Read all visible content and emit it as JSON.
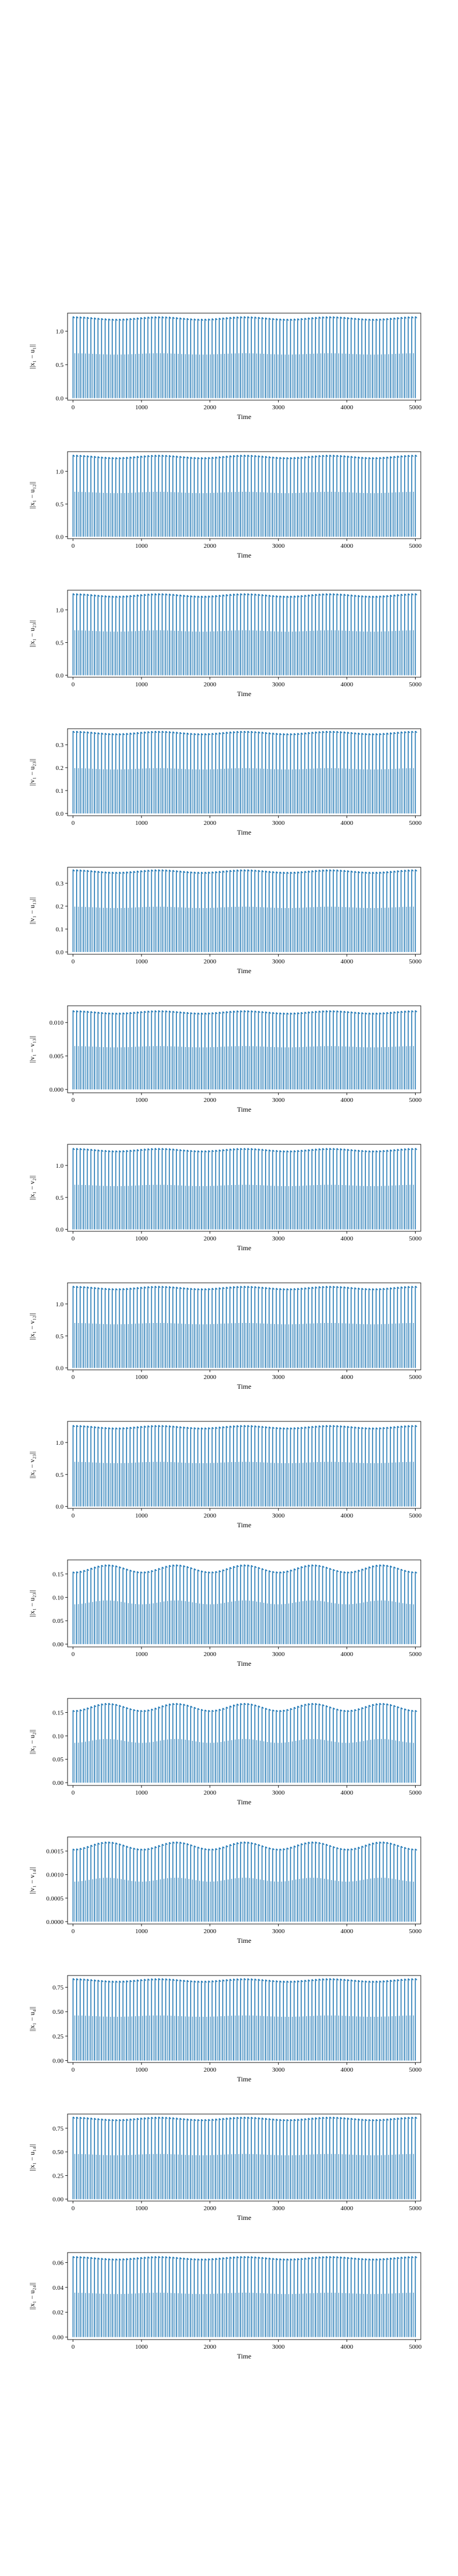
{
  "figure": {
    "background": "#ffffff"
  },
  "chart_data": [
    {
      "type": "line",
      "title": "",
      "xlabel": "Time",
      "ylabel": "||x₁ − u₁||",
      "xlim": [
        -80,
        5080
      ],
      "ylim": [
        -0.03,
        1.27
      ],
      "xticks": [
        0,
        1000,
        2000,
        3000,
        4000,
        5000
      ],
      "xtick_labels": [
        "0",
        "1000",
        "2000",
        "3000",
        "4000",
        "5000"
      ],
      "yticks": [
        0,
        0.5,
        1.0
      ],
      "ytick_labels": [
        "0.0",
        "0.5",
        "1.0"
      ],
      "grid": false,
      "legend": "none",
      "color": "#1f77b4",
      "series": [
        {
          "envelope_max": 1.22,
          "envelope_min": 0.0,
          "pattern": "dense oscillation, near-constant envelope",
          "t_range": [
            0,
            5000
          ]
        }
      ]
    },
    {
      "type": "line",
      "title": "",
      "xlabel": "Time",
      "ylabel": "||x₁ − u₁₂||",
      "xlim": [
        -80,
        5080
      ],
      "ylim": [
        -0.03,
        1.3
      ],
      "xticks": [
        0,
        1000,
        2000,
        3000,
        4000,
        5000
      ],
      "xtick_labels": [
        "0",
        "1000",
        "2000",
        "3000",
        "4000",
        "5000"
      ],
      "yticks": [
        0,
        0.5,
        1.0
      ],
      "ytick_labels": [
        "0.0",
        "0.5",
        "1.0"
      ],
      "grid": false,
      "legend": "none",
      "color": "#1f77b4",
      "series": [
        {
          "envelope_max": 1.25,
          "envelope_min": 0.0,
          "pattern": "dense oscillation, near-constant envelope",
          "t_range": [
            0,
            5000
          ]
        }
      ]
    },
    {
      "type": "line",
      "title": "",
      "xlabel": "Time",
      "ylabel": "||x₁ − u₂₃||",
      "xlim": [
        -80,
        5080
      ],
      "ylim": [
        -0.03,
        1.3
      ],
      "xticks": [
        0,
        1000,
        2000,
        3000,
        4000,
        5000
      ],
      "xtick_labels": [
        "0",
        "1000",
        "2000",
        "3000",
        "4000",
        "5000"
      ],
      "yticks": [
        0,
        0.5,
        1.0
      ],
      "ytick_labels": [
        "0.0",
        "0.5",
        "1.0"
      ],
      "grid": false,
      "legend": "none",
      "color": "#1f77b4",
      "series": [
        {
          "envelope_max": 1.25,
          "envelope_min": 0.0,
          "pattern": "dense oscillation, near-constant envelope",
          "t_range": [
            0,
            5000
          ]
        }
      ]
    },
    {
      "type": "line",
      "title": "",
      "xlabel": "Time",
      "ylabel": "||v₁ − u₂₃||",
      "xlim": [
        -80,
        5080
      ],
      "ylim": [
        -0.01,
        0.37
      ],
      "xticks": [
        0,
        1000,
        2000,
        3000,
        4000,
        5000
      ],
      "xtick_labels": [
        "0",
        "1000",
        "2000",
        "3000",
        "4000",
        "5000"
      ],
      "yticks": [
        0,
        0.1,
        0.2,
        0.3
      ],
      "ytick_labels": [
        "0.0",
        "0.1",
        "0.2",
        "0.3"
      ],
      "grid": false,
      "legend": "none",
      "color": "#1f77b4",
      "series": [
        {
          "envelope_max": 0.36,
          "envelope_min": 0.0,
          "pattern": "dense oscillation, near-constant envelope",
          "t_range": [
            0,
            5000
          ]
        }
      ]
    },
    {
      "type": "line",
      "title": "",
      "xlabel": "Time",
      "ylabel": "||v₁ − u₁₃||",
      "xlim": [
        -80,
        5080
      ],
      "ylim": [
        -0.01,
        0.37
      ],
      "xticks": [
        0,
        1000,
        2000,
        3000,
        4000,
        5000
      ],
      "xtick_labels": [
        "0",
        "1000",
        "2000",
        "3000",
        "4000",
        "5000"
      ],
      "yticks": [
        0,
        0.1,
        0.2,
        0.3
      ],
      "ytick_labels": [
        "0.0",
        "0.1",
        "0.2",
        "0.3"
      ],
      "grid": false,
      "legend": "none",
      "color": "#1f77b4",
      "series": [
        {
          "envelope_max": 0.36,
          "envelope_min": 0.0,
          "pattern": "dense oscillation, near-constant envelope",
          "t_range": [
            0,
            5000
          ]
        }
      ]
    },
    {
      "type": "line",
      "title": "",
      "xlabel": "Time",
      "ylabel": "||v₁ − v₁₃||",
      "xlim": [
        -80,
        5080
      ],
      "ylim": [
        -0.0005,
        0.0125
      ],
      "xticks": [
        0,
        1000,
        2000,
        3000,
        4000,
        5000
      ],
      "xtick_labels": [
        "0",
        "1000",
        "2000",
        "3000",
        "4000",
        "5000"
      ],
      "yticks": [
        0,
        0.005,
        0.01
      ],
      "ytick_labels": [
        "0.000",
        "0.005",
        "0.010"
      ],
      "grid": false,
      "legend": "none",
      "color": "#1f77b4",
      "series": [
        {
          "envelope_max": 0.0118,
          "envelope_min": 0.0,
          "pattern": "dense oscillation, near-constant envelope",
          "t_range": [
            0,
            5000
          ]
        }
      ]
    },
    {
      "type": "line",
      "title": "",
      "xlabel": "Time",
      "ylabel": "||x₁ − v₂||",
      "xlim": [
        -80,
        5080
      ],
      "ylim": [
        -0.03,
        1.33
      ],
      "xticks": [
        0,
        1000,
        2000,
        3000,
        4000,
        5000
      ],
      "xtick_labels": [
        "0",
        "1000",
        "2000",
        "3000",
        "4000",
        "5000"
      ],
      "yticks": [
        0,
        0.5,
        1.0
      ],
      "ytick_labels": [
        "0.0",
        "0.5",
        "1.0"
      ],
      "grid": false,
      "legend": "none",
      "color": "#1f77b4",
      "series": [
        {
          "envelope_max": 1.27,
          "envelope_min": 0.0,
          "pattern": "dense oscillation, near-constant envelope",
          "t_range": [
            0,
            5000
          ]
        }
      ]
    },
    {
      "type": "line",
      "title": "",
      "xlabel": "Time",
      "ylabel": "||x₁ − v₁₂||",
      "xlim": [
        -80,
        5080
      ],
      "ylim": [
        -0.03,
        1.33
      ],
      "xticks": [
        0,
        1000,
        2000,
        3000,
        4000,
        5000
      ],
      "xtick_labels": [
        "0",
        "1000",
        "2000",
        "3000",
        "4000",
        "5000"
      ],
      "yticks": [
        0,
        0.5,
        1.0
      ],
      "ytick_labels": [
        "0.0",
        "0.5",
        "1.0"
      ],
      "grid": false,
      "legend": "none",
      "color": "#1f77b4",
      "series": [
        {
          "envelope_max": 1.28,
          "envelope_min": 0.0,
          "pattern": "dense oscillation, near-constant envelope",
          "t_range": [
            0,
            5000
          ]
        }
      ]
    },
    {
      "type": "line",
      "title": "",
      "xlabel": "Time",
      "ylabel": "||x₁ − v₂₃||",
      "xlim": [
        -80,
        5080
      ],
      "ylim": [
        -0.03,
        1.33
      ],
      "xticks": [
        0,
        1000,
        2000,
        3000,
        4000,
        5000
      ],
      "xtick_labels": [
        "0",
        "1000",
        "2000",
        "3000",
        "4000",
        "5000"
      ],
      "yticks": [
        0,
        0.5,
        1.0
      ],
      "ytick_labels": [
        "0.0",
        "0.5",
        "1.0"
      ],
      "grid": false,
      "legend": "none",
      "color": "#1f77b4",
      "series": [
        {
          "envelope_max": 1.27,
          "envelope_min": 0.0,
          "pattern": "dense oscillation, near-constant envelope",
          "t_range": [
            0,
            5000
          ]
        }
      ]
    },
    {
      "type": "line",
      "title": "",
      "xlabel": "Time",
      "ylabel": "||x₁ − u₂₃||",
      "xlim": [
        -80,
        5080
      ],
      "ylim": [
        -0.006,
        0.18
      ],
      "xticks": [
        0,
        1000,
        2000,
        3000,
        4000,
        5000
      ],
      "xtick_labels": [
        "0",
        "1000",
        "2000",
        "3000",
        "4000",
        "5000"
      ],
      "yticks": [
        0,
        0.05,
        0.1,
        0.15
      ],
      "ytick_labels": [
        "0.00",
        "0.05",
        "0.10",
        "0.15"
      ],
      "grid": false,
      "legend": "none",
      "color": "#1f77b4",
      "series": [
        {
          "envelope_max": 0.17,
          "envelope_min": 0.0,
          "pattern": "dense oscillation, envelope waves between ~0.155 and ~0.17 with period ~1000",
          "t_range": [
            0,
            5000
          ]
        }
      ]
    },
    {
      "type": "line",
      "title": "",
      "xlabel": "Time",
      "ylabel": "||x₁ − u₂||",
      "xlim": [
        -80,
        5080
      ],
      "ylim": [
        -0.006,
        0.18
      ],
      "xticks": [
        0,
        1000,
        2000,
        3000,
        4000,
        5000
      ],
      "xtick_labels": [
        "0",
        "1000",
        "2000",
        "3000",
        "4000",
        "5000"
      ],
      "yticks": [
        0,
        0.05,
        0.1,
        0.15
      ],
      "ytick_labels": [
        "0.00",
        "0.05",
        "0.10",
        "0.15"
      ],
      "grid": false,
      "legend": "none",
      "color": "#1f77b4",
      "series": [
        {
          "envelope_max": 0.17,
          "envelope_min": 0.0,
          "pattern": "dense oscillation, envelope waves between ~0.155 and ~0.17 with period ~1000",
          "t_range": [
            0,
            5000
          ]
        }
      ]
    },
    {
      "type": "line",
      "title": "",
      "xlabel": "Time",
      "ylabel": "||v₁ − v₁₄||",
      "xlim": [
        -80,
        5080
      ],
      "ylim": [
        -5e-05,
        0.0018
      ],
      "xticks": [
        0,
        1000,
        2000,
        3000,
        4000,
        5000
      ],
      "xtick_labels": [
        "0",
        "1000",
        "2000",
        "3000",
        "4000",
        "5000"
      ],
      "yticks": [
        0,
        0.0005,
        0.001,
        0.0015
      ],
      "ytick_labels": [
        "0.0000",
        "0.0005",
        "0.0010",
        "0.0015"
      ],
      "grid": false,
      "legend": "none",
      "color": "#1f77b4",
      "series": [
        {
          "envelope_max": 0.0017,
          "envelope_min": 0.0,
          "pattern": "dense oscillation, envelope waves between ~0.0015 and ~0.0017 with period ~1000",
          "t_range": [
            0,
            5000
          ]
        }
      ]
    },
    {
      "type": "line",
      "title": "",
      "xlabel": "Time",
      "ylabel": "||x₁ − u₄||",
      "xlim": [
        -80,
        5080
      ],
      "ylim": [
        -0.02,
        0.87
      ],
      "xticks": [
        0,
        1000,
        2000,
        3000,
        4000,
        5000
      ],
      "xtick_labels": [
        "0",
        "1000",
        "2000",
        "3000",
        "4000",
        "5000"
      ],
      "yticks": [
        0,
        0.25,
        0.5,
        0.75
      ],
      "ytick_labels": [
        "0.00",
        "0.25",
        "0.50",
        "0.75"
      ],
      "grid": false,
      "legend": "none",
      "color": "#1f77b4",
      "series": [
        {
          "envelope_max": 0.84,
          "envelope_min": 0.0,
          "pattern": "dense oscillation, near-constant envelope",
          "t_range": [
            0,
            5000
          ]
        }
      ]
    },
    {
      "type": "line",
      "title": "",
      "xlabel": "Time",
      "ylabel": "||x₁ − u₁₄||",
      "xlim": [
        -80,
        5080
      ],
      "ylim": [
        -0.02,
        0.9
      ],
      "xticks": [
        0,
        1000,
        2000,
        3000,
        4000,
        5000
      ],
      "xtick_labels": [
        "0",
        "1000",
        "2000",
        "3000",
        "4000",
        "5000"
      ],
      "yticks": [
        0,
        0.25,
        0.5,
        0.75
      ],
      "ytick_labels": [
        "0.00",
        "0.25",
        "0.50",
        "0.75"
      ],
      "grid": false,
      "legend": "none",
      "color": "#1f77b4",
      "series": [
        {
          "envelope_max": 0.87,
          "envelope_min": 0.0,
          "pattern": "dense oscillation, near-constant envelope",
          "t_range": [
            0,
            5000
          ]
        }
      ]
    },
    {
      "type": "line",
      "title": "",
      "xlabel": "Time",
      "ylabel": "||x₁ − u₂₄||",
      "xlim": [
        -80,
        5080
      ],
      "ylim": [
        -0.002,
        0.068
      ],
      "xticks": [
        0,
        1000,
        2000,
        3000,
        4000,
        5000
      ],
      "xtick_labels": [
        "0",
        "1000",
        "2000",
        "3000",
        "4000",
        "5000"
      ],
      "yticks": [
        0,
        0.02,
        0.04,
        0.06
      ],
      "ytick_labels": [
        "0.00",
        "0.02",
        "0.04",
        "0.06"
      ],
      "grid": false,
      "legend": "none",
      "color": "#1f77b4",
      "series": [
        {
          "envelope_max": 0.065,
          "envelope_min": 0.0,
          "pattern": "dense oscillation, near-constant envelope",
          "t_range": [
            0,
            5000
          ]
        }
      ]
    }
  ]
}
